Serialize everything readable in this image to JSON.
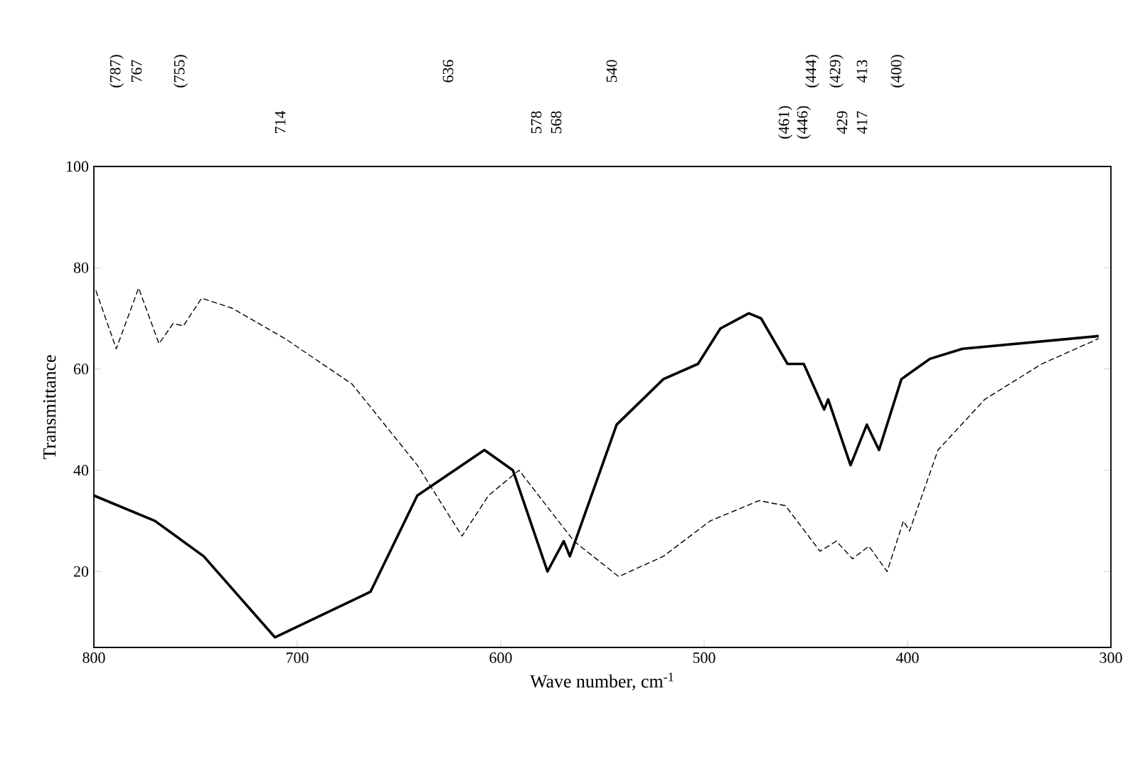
{
  "chart_data": {
    "type": "line",
    "xlabel": "Wave number, cm$^{-1}$",
    "ylabel": "Transmittance",
    "xlim": [
      800,
      300
    ],
    "xticks": [
      800,
      700,
      600,
      500,
      400,
      300
    ],
    "ylim": [
      5,
      100
    ],
    "yticks": [
      20,
      40,
      60,
      80,
      100
    ],
    "grid": false,
    "marker": "none",
    "series": [
      {
        "color": "#000000",
        "line_style": "solid",
        "x": [
          800,
          770,
          746,
          711,
          664,
          641,
          608,
          594,
          577,
          569,
          566,
          543,
          520,
          503,
          492,
          478,
          472,
          459,
          451,
          441,
          439,
          428,
          420,
          414,
          403,
          389,
          373,
          306
        ],
        "values": [
          35,
          30,
          23,
          7,
          16,
          35,
          44,
          40,
          20,
          26,
          23,
          49,
          58,
          61,
          68,
          71,
          70,
          61,
          61,
          52,
          54,
          41,
          49,
          44,
          58,
          62,
          64,
          66.5
        ]
      },
      {
        "color": "#000000",
        "line_style": "dashed",
        "x": [
          799,
          789,
          778,
          768,
          761,
          756,
          747,
          732,
          706,
          673,
          641,
          619,
          606,
          591,
          564,
          542,
          520,
          497,
          473,
          460,
          443,
          435,
          427,
          419,
          410,
          402,
          399,
          385,
          362,
          334,
          306
        ],
        "values": [
          75.5,
          64,
          76,
          65,
          69,
          68.5,
          74,
          72,
          66,
          57,
          41,
          27,
          35,
          40,
          26,
          19,
          23,
          30,
          34,
          33,
          24,
          26,
          22.5,
          25,
          20,
          30,
          28,
          44,
          54,
          61,
          66
        ]
      }
    ],
    "annotations": [
      "(787)",
      "767",
      "(755)",
      "636",
      "540",
      "(444)",
      "(429)",
      "413",
      "(400)",
      "714",
      "578",
      "568",
      "(461)",
      "(446)",
      "429",
      "417"
    ]
  }
}
